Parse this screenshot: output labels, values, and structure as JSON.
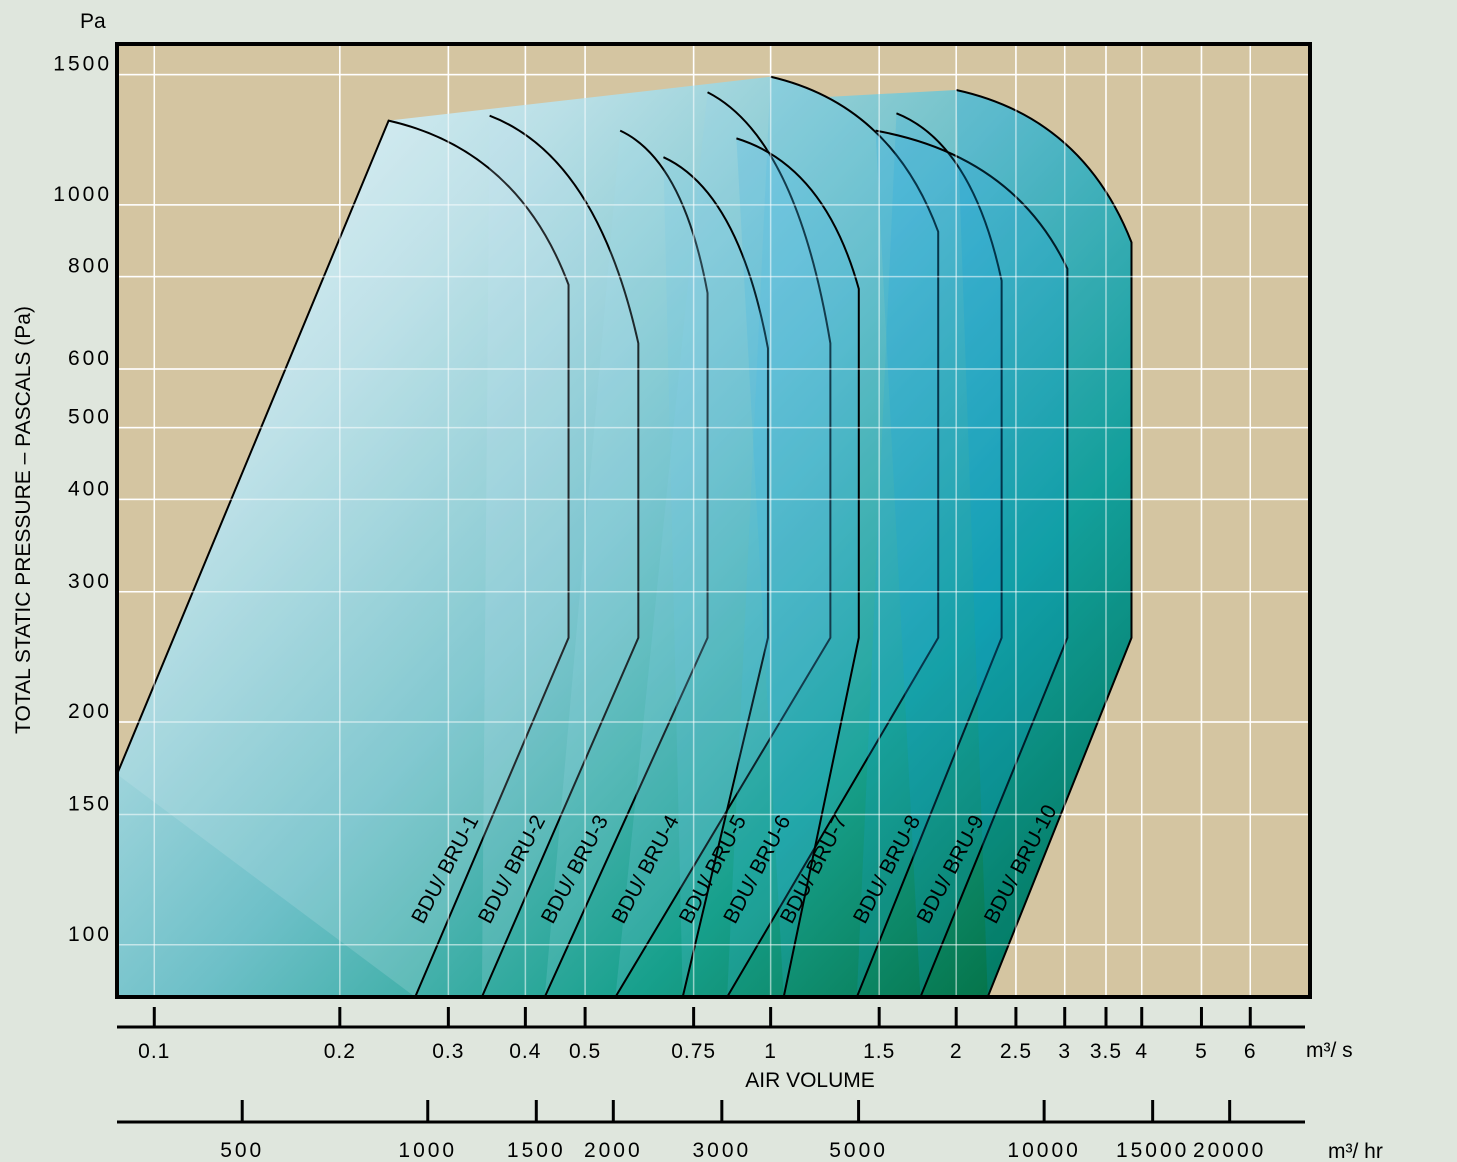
{
  "chart_data": {
    "type": "area",
    "title": "",
    "ylabel": "TOTAL STATIC PRESSURE – PASCALS (Pa)",
    "y_unit": "Pa",
    "y_scale": "log",
    "ylim": [
      85,
      1650
    ],
    "y_ticks": [
      100,
      150,
      200,
      300,
      400,
      500,
      600,
      800,
      1000,
      1500
    ],
    "xlabel": "AIR VOLUME",
    "x_unit": "m³/ s",
    "x_scale": "log",
    "xlim": [
      0.087,
      7.5
    ],
    "x_ticks": [
      0.1,
      0.2,
      0.3,
      0.4,
      0.5,
      0.75,
      1,
      1.5,
      2,
      2.5,
      3,
      3.5,
      4,
      5,
      6
    ],
    "x_tick_labels": [
      "0.1",
      "0.2",
      "0.3",
      "0.4",
      "0.5",
      "0.75",
      "1",
      "1.5",
      "2",
      "2.5",
      "3",
      "3.5",
      "4",
      "5",
      "6"
    ],
    "x2_unit": "m³/ hr",
    "x2_ticks": [
      500,
      1000,
      1500,
      2000,
      3000,
      5000,
      10000,
      15000,
      20000
    ],
    "x2_tick_labels": [
      "500",
      "1000",
      "1500",
      "2000",
      "3000",
      "5000",
      "10000",
      "15000",
      "20000"
    ],
    "grid": true,
    "series": [
      {
        "name": "BDU/ BRU-1",
        "color": "#dff0f5",
        "points": [
          [
            0.087,
            170
          ],
          [
            0.24,
            1300
          ],
          [
            0.47,
            780
          ],
          [
            0.47,
            260
          ],
          [
            0.265,
            85
          ]
        ]
      },
      {
        "name": "BDU/ BRU-2",
        "color": "#c6e6f2",
        "points": [
          [
            0.35,
            1320
          ],
          [
            0.61,
            650
          ],
          [
            0.61,
            260
          ],
          [
            0.34,
            85
          ]
        ]
      },
      {
        "name": "BDU/ BRU-3",
        "color": "#a9dbee",
        "points": [
          [
            0.57,
            1260
          ],
          [
            0.79,
            760
          ],
          [
            0.79,
            260
          ],
          [
            0.43,
            85
          ]
        ]
      },
      {
        "name": "BDU/ BRU-4",
        "color": "#8fd2ec",
        "points": [
          [
            0.79,
            1420
          ],
          [
            1.25,
            650
          ],
          [
            1.25,
            260
          ],
          [
            0.56,
            85
          ]
        ]
      },
      {
        "name": "BDU/ BRU-5",
        "color": "#6fc8ea",
        "points": [
          [
            0.67,
            1160
          ],
          [
            0.99,
            640
          ],
          [
            0.99,
            260
          ],
          [
            0.72,
            85
          ]
        ]
      },
      {
        "name": "BDU/ BRU-6",
        "color": "#47bdea",
        "points": [
          [
            1.0,
            1490
          ],
          [
            1.87,
            920
          ],
          [
            1.87,
            260
          ],
          [
            0.85,
            85
          ]
        ]
      },
      {
        "name": "BDU/ BRU-7",
        "color": "#33b2e7",
        "points": [
          [
            0.88,
            1230
          ],
          [
            1.39,
            770
          ],
          [
            1.39,
            260
          ],
          [
            1.05,
            85
          ]
        ]
      },
      {
        "name": "BDU/ BRU-8",
        "color": "#1ca8e4",
        "points": [
          [
            1.6,
            1330
          ],
          [
            2.37,
            790
          ],
          [
            2.37,
            260
          ],
          [
            1.38,
            85
          ]
        ]
      },
      {
        "name": "BDU/ BRU-9",
        "color": "#0ea2e3",
        "points": [
          [
            1.48,
            1260
          ],
          [
            3.03,
            820
          ],
          [
            3.03,
            260
          ],
          [
            1.75,
            85
          ]
        ]
      },
      {
        "name": "BDU/ BRU-10",
        "color": "#0099df",
        "points": [
          [
            2.0,
            1430
          ],
          [
            3.85,
            890
          ],
          [
            3.85,
            260
          ],
          [
            2.25,
            85
          ]
        ]
      }
    ]
  }
}
